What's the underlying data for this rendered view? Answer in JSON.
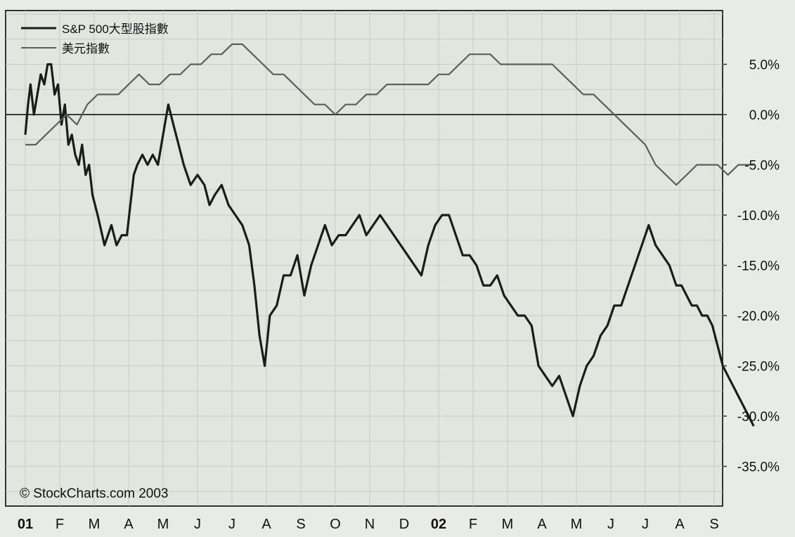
{
  "chart_data": {
    "type": "line",
    "title": "",
    "xlabel": "",
    "ylabel": "",
    "legend_position": "top-left",
    "grid": true,
    "ylim": [
      -38.5,
      10.5
    ],
    "y_ticks": [
      "5.0%",
      "0.0%",
      "-5.0%",
      "-10.0%",
      "-15.0%",
      "-20.0%",
      "-25.0%",
      "-30.0%",
      "-35.0%"
    ],
    "y_tick_values": [
      5,
      0,
      -5,
      -10,
      -15,
      -20,
      -25,
      -30,
      -35
    ],
    "x_ticks": [
      "01",
      "F",
      "M",
      "A",
      "M",
      "J",
      "J",
      "A",
      "S",
      "O",
      "N",
      "D",
      "02",
      "F",
      "M",
      "A",
      "M",
      "J",
      "J",
      "A",
      "S"
    ],
    "x_tick_bold": [
      true,
      false,
      false,
      false,
      false,
      false,
      false,
      false,
      false,
      false,
      false,
      false,
      true,
      false,
      false,
      false,
      false,
      false,
      false,
      false,
      false
    ],
    "x_tick_months": [
      0,
      1,
      2,
      3,
      4,
      5,
      6,
      7,
      8,
      9,
      10,
      11,
      12,
      13,
      14,
      15,
      16,
      17,
      18,
      19,
      20
    ],
    "reference_line": 0,
    "watermark": "© StockCharts.com 2003",
    "colors": {
      "sp500": "#1c1c1c",
      "usd": "#5e5e5e",
      "grid": "#c8ccc6",
      "background": "#e9ebe6"
    },
    "series": [
      {
        "name": "S&P 500大型股指數",
        "key": "sp500",
        "x": [
          0,
          0.08,
          0.15,
          0.25,
          0.35,
          0.45,
          0.55,
          0.65,
          0.75,
          0.85,
          0.95,
          1.05,
          1.15,
          1.25,
          1.35,
          1.45,
          1.55,
          1.65,
          1.75,
          1.85,
          1.95,
          2.1,
          2.3,
          2.5,
          2.65,
          2.8,
          2.95,
          3.05,
          3.15,
          3.25,
          3.4,
          3.55,
          3.7,
          3.85,
          4.0,
          4.15,
          4.3,
          4.45,
          4.6,
          4.8,
          5.0,
          5.2,
          5.35,
          5.5,
          5.7,
          5.9,
          6.1,
          6.3,
          6.5,
          6.65,
          6.8,
          6.95,
          7.1,
          7.3,
          7.5,
          7.7,
          7.9,
          8.1,
          8.3,
          8.5,
          8.7,
          8.9,
          9.1,
          9.3,
          9.5,
          9.7,
          9.9,
          10.1,
          10.3,
          10.5,
          10.7,
          10.9,
          11.1,
          11.3,
          11.5,
          11.7,
          11.9,
          12.1,
          12.3,
          12.5,
          12.7,
          12.9,
          13.1,
          13.3,
          13.5,
          13.7,
          13.9,
          14.1,
          14.3,
          14.5,
          14.7,
          14.9,
          15.1,
          15.3,
          15.5,
          15.7,
          15.9,
          16.1,
          16.3,
          16.5,
          16.7,
          16.9,
          17.1,
          17.3,
          17.5,
          17.7,
          17.9,
          18.1,
          18.3,
          18.5,
          18.7,
          18.9,
          19.05,
          19.2,
          19.35,
          19.5,
          19.65,
          19.8,
          19.95,
          20.1,
          20.25,
          20.4,
          20.55,
          20.7,
          20.85,
          21.0,
          21.15
        ],
        "values": [
          -2,
          1,
          3,
          0,
          2,
          4,
          3,
          5,
          5,
          2,
          3,
          -1,
          1,
          -3,
          -2,
          -4,
          -5,
          -3,
          -6,
          -5,
          -8,
          -10,
          -13,
          -11,
          -13,
          -12,
          -12,
          -9,
          -6,
          -5,
          -4,
          -5,
          -4,
          -5,
          -2,
          1,
          -1,
          -3,
          -5,
          -7,
          -6,
          -7,
          -9,
          -8,
          -7,
          -9,
          -10,
          -11,
          -13,
          -17,
          -22,
          -25,
          -20,
          -19,
          -16,
          -16,
          -14,
          -18,
          -15,
          -13,
          -11,
          -13,
          -12,
          -12,
          -11,
          -10,
          -12,
          -11,
          -10,
          -11,
          -12,
          -13,
          -14,
          -15,
          -16,
          -13,
          -11,
          -10,
          -10,
          -12,
          -14,
          -14,
          -15,
          -17,
          -17,
          -16,
          -18,
          -19,
          -20,
          -20,
          -21,
          -25,
          -26,
          -27,
          -26,
          -28,
          -30,
          -27,
          -25,
          -24,
          -22,
          -21,
          -19,
          -19,
          -17,
          -15,
          -13,
          -11,
          -13,
          -14,
          -15,
          -17,
          -17,
          -18,
          -19,
          -19,
          -20,
          -20,
          -21,
          -23,
          -25,
          -26,
          -27,
          -28,
          -29,
          -30,
          -31
        ]
      },
      {
        "name": "美元指數",
        "key": "usd",
        "x": [
          0,
          0.3,
          0.6,
          0.9,
          1.2,
          1.5,
          1.8,
          2.1,
          2.4,
          2.7,
          3.0,
          3.3,
          3.6,
          3.9,
          4.2,
          4.5,
          4.8,
          5.1,
          5.4,
          5.7,
          6.0,
          6.3,
          6.6,
          6.9,
          7.2,
          7.5,
          7.8,
          8.1,
          8.4,
          8.7,
          9.0,
          9.3,
          9.6,
          9.9,
          10.2,
          10.5,
          10.8,
          11.1,
          11.4,
          11.7,
          12.0,
          12.3,
          12.6,
          12.9,
          13.2,
          13.5,
          13.8,
          14.1,
          14.4,
          14.7,
          15.0,
          15.3,
          15.6,
          15.9,
          16.2,
          16.5,
          16.8,
          17.1,
          17.4,
          17.7,
          18.0,
          18.3,
          18.6,
          18.9,
          19.2,
          19.5,
          19.8,
          20.1,
          20.4,
          20.7,
          21.0,
          21.15
        ],
        "values": [
          -3,
          -3,
          -2,
          -1,
          0,
          -1,
          1,
          2,
          2,
          2,
          3,
          4,
          3,
          3,
          4,
          4,
          5,
          5,
          6,
          6,
          7,
          7,
          6,
          5,
          4,
          4,
          3,
          2,
          1,
          1,
          0,
          1,
          1,
          2,
          2,
          3,
          3,
          3,
          3,
          3,
          4,
          4,
          5,
          6,
          6,
          6,
          5,
          5,
          5,
          5,
          5,
          5,
          4,
          3,
          2,
          2,
          1,
          0,
          -1,
          -2,
          -3,
          -5,
          -6,
          -7,
          -6,
          -5,
          -5,
          -5,
          -6,
          -5,
          -5,
          -5
        ]
      }
    ]
  }
}
